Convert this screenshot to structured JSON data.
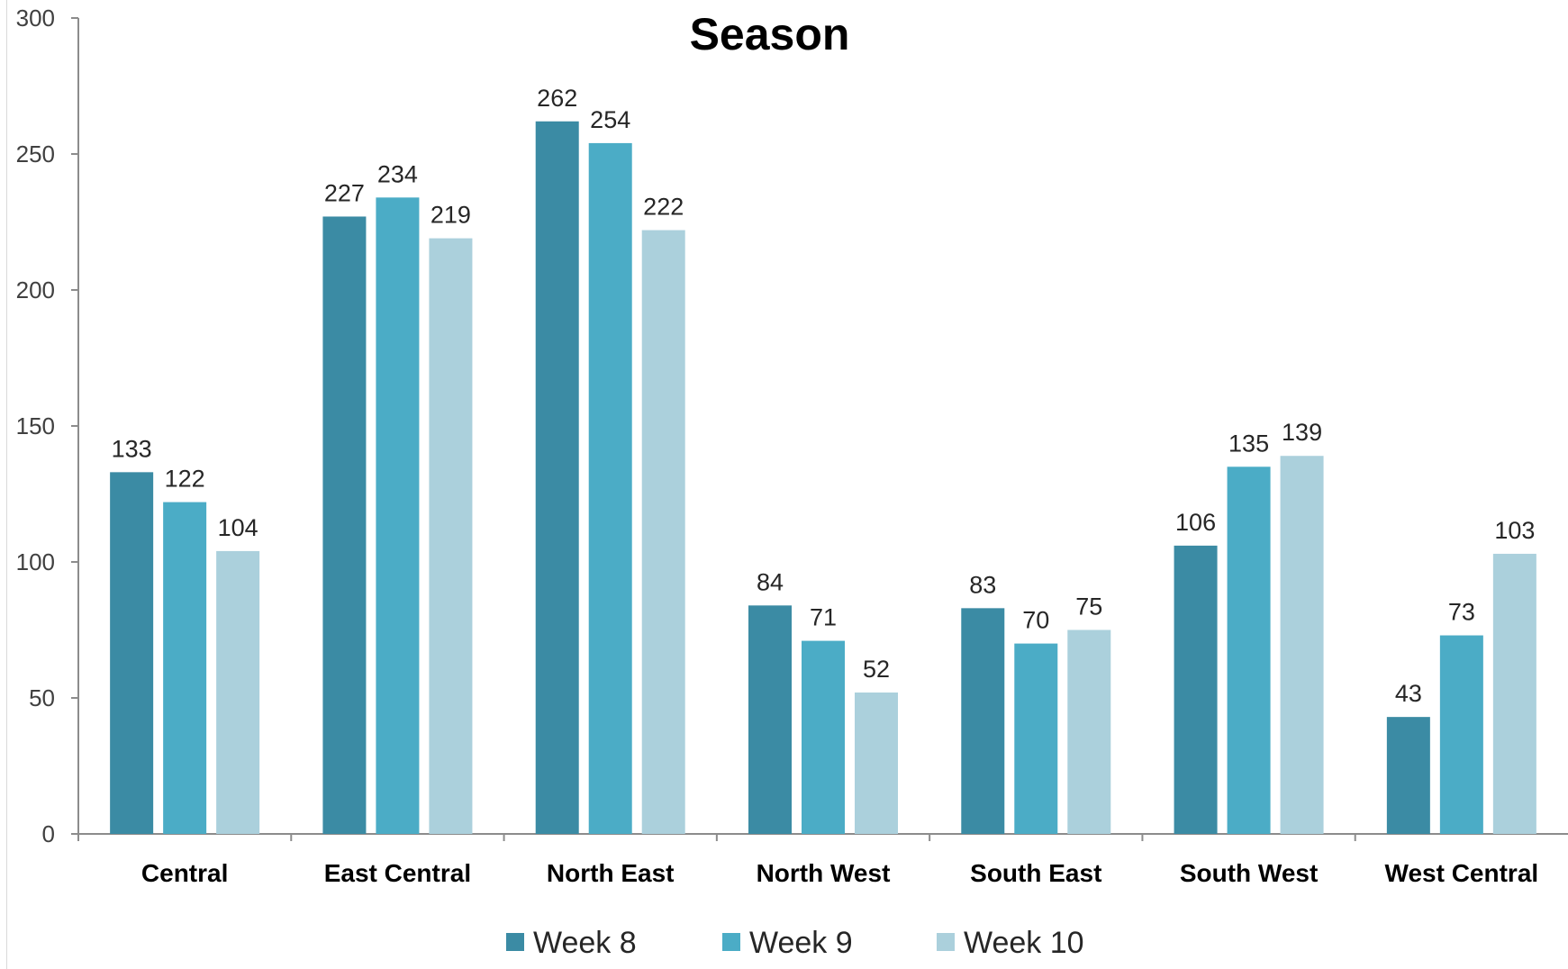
{
  "chart_data": {
    "type": "bar",
    "title": "Season",
    "xlabel": "",
    "ylabel": "",
    "ylim": [
      0,
      300
    ],
    "yticks": [
      0,
      50,
      100,
      150,
      200,
      250,
      300
    ],
    "grid": false,
    "legend_position": "bottom",
    "categories": [
      "Central",
      "East Central",
      "North East",
      "North West",
      "South East",
      "South West",
      "West Central"
    ],
    "series": [
      {
        "name": "Week 8",
        "color": "#3b8ba4",
        "values": [
          133,
          227,
          262,
          84,
          83,
          106,
          43
        ]
      },
      {
        "name": "Week 9",
        "color": "#4bacc6",
        "values": [
          122,
          234,
          254,
          71,
          70,
          135,
          73
        ]
      },
      {
        "name": "Week 10",
        "color": "#abd0dc",
        "values": [
          104,
          219,
          222,
          52,
          75,
          139,
          103
        ]
      }
    ]
  }
}
